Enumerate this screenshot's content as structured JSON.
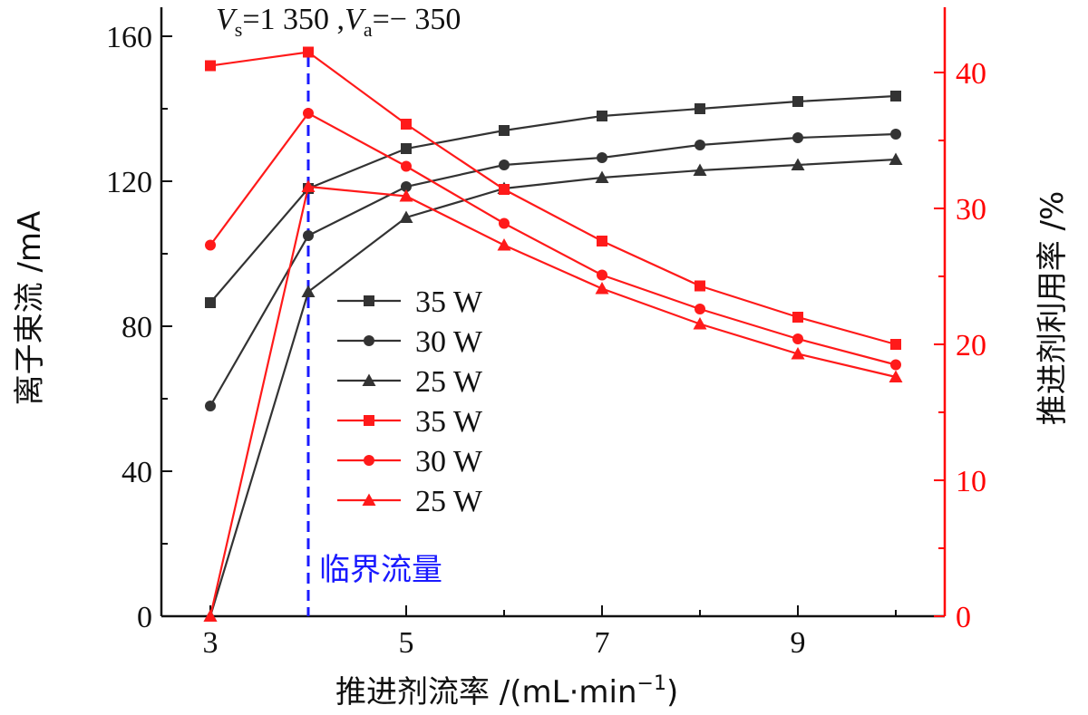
{
  "chart_data": {
    "type": "line",
    "annotation": {
      "vs_symbol": "V",
      "vs_sub": "s",
      "vs_rest": "=1 350 ,",
      "va_symbol": "V",
      "va_sub": "a",
      "va_rest": "=− 350"
    },
    "critical_label": "临界流量",
    "critical_x": 4,
    "xlabel_main": "推进剂流率 /(mL·min",
    "xlabel_sup": "−1",
    "xlabel_close": ")",
    "ylabel_left": "离子束流 /mA",
    "ylabel_right": "推进剂利用率 /%",
    "xlim": [
      2.5,
      10.5
    ],
    "ylim_left": [
      0,
      168
    ],
    "ylim_right": [
      0,
      44.8
    ],
    "x_ticks": [
      3,
      5,
      7,
      9
    ],
    "x_ticks_minor": [
      4,
      6,
      8,
      10
    ],
    "x_tick_labels": [
      "3",
      "5",
      "7",
      "9"
    ],
    "y_left_ticks": [
      0,
      40,
      80,
      120,
      160
    ],
    "y_left_tick_labels": [
      "0",
      "40",
      "80",
      "120",
      "160"
    ],
    "y_left_ticks_minor": [
      20,
      60,
      100,
      140
    ],
    "y_right_ticks": [
      0,
      10,
      20,
      30,
      40
    ],
    "y_right_tick_labels": [
      "0",
      "10",
      "20",
      "30",
      "40"
    ],
    "y_right_ticks_minor": [
      5,
      15,
      25,
      35
    ],
    "x": [
      3,
      4,
      5,
      6,
      7,
      8,
      9,
      10
    ],
    "colors": {
      "black_series": "#333333",
      "red_series": "#ff1a1a",
      "critical": "#1a1aff",
      "right_axis": "#ff0000"
    },
    "legend_position": "center-left",
    "series": [
      {
        "name": "35 W",
        "axis": "left",
        "marker": "square",
        "color": "#333333",
        "values": [
          86.5,
          118,
          129,
          134,
          138,
          140,
          142,
          143.5
        ]
      },
      {
        "name": "30 W",
        "axis": "left",
        "marker": "circle",
        "color": "#333333",
        "values": [
          58,
          105,
          118.5,
          124.5,
          126.5,
          130,
          132,
          133
        ]
      },
      {
        "name": "25 W",
        "axis": "left",
        "marker": "triangle",
        "color": "#333333",
        "values": [
          0,
          89.5,
          110,
          118,
          121,
          123,
          124.5,
          126
        ]
      },
      {
        "name": "35 W",
        "axis": "right",
        "marker": "square",
        "color": "#ff1a1a",
        "values": [
          40.5,
          41.5,
          36.2,
          31.4,
          27.6,
          24.3,
          22,
          20
        ]
      },
      {
        "name": "30 W",
        "axis": "right",
        "marker": "circle",
        "color": "#ff1a1a",
        "values": [
          27.3,
          37,
          33.1,
          28.9,
          25.1,
          22.6,
          20.4,
          18.5
        ]
      },
      {
        "name": "25 W",
        "axis": "right",
        "marker": "triangle",
        "color": "#ff1a1a",
        "values": [
          0,
          31.6,
          30.9,
          27.3,
          24.1,
          21.5,
          19.3,
          17.6
        ]
      }
    ]
  }
}
